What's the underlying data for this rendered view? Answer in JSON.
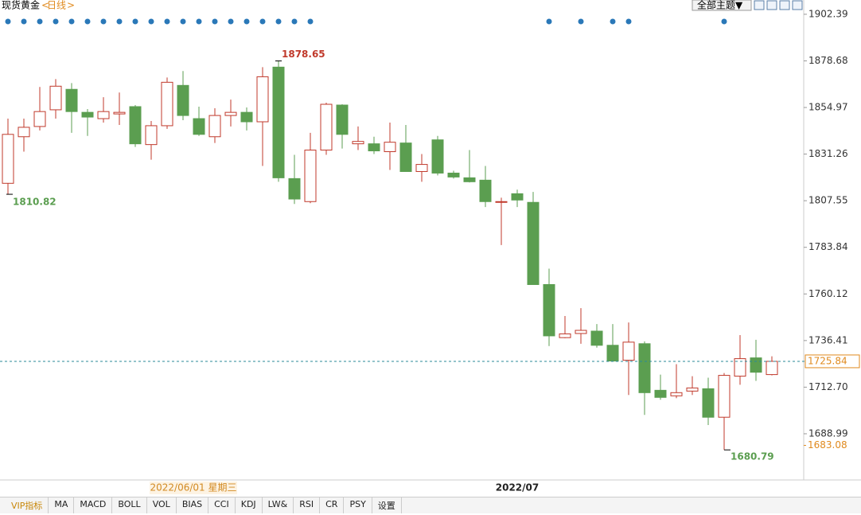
{
  "header": {
    "symbol": "现货黄金",
    "period": "日线",
    "theme_button": "全部主题▼"
  },
  "chart_data": {
    "type": "candlestick",
    "categories": [
      null,
      null,
      null,
      null,
      null,
      null,
      null,
      null,
      null,
      null,
      null,
      null,
      null,
      null,
      null,
      null,
      null,
      null,
      null,
      null,
      null,
      null,
      null,
      null,
      null,
      null,
      null,
      null,
      null,
      null,
      null,
      null,
      "2022/07",
      null,
      null,
      null,
      null,
      null,
      null,
      null,
      null,
      null,
      null,
      null,
      null,
      null,
      null,
      null,
      null
    ],
    "crosshair_date": "2022/06/01 星期三",
    "series": {
      "open": [
        1816.4,
        1840.1,
        1845.3,
        1853.8,
        1864.2,
        1852.5,
        1849.3,
        1851.7,
        1855.4,
        1836.1,
        1845.7,
        1866.2,
        1849.3,
        1840.1,
        1850.9,
        1852.5,
        1847.7,
        1875.5,
        1818.8,
        1807.1,
        1833.3,
        1856.2,
        1836.5,
        1836.5,
        1832.5,
        1836.9,
        1822.4,
        1838.5,
        1821.6,
        1819.2,
        1818.0,
        1806.7,
        1811.1,
        1806.7,
        1764.9,
        1737.9,
        1740.0,
        1741.2,
        1734.0,
        1726.4,
        1734.8,
        1711.1,
        1708.3,
        1710.7,
        1711.9,
        1697.4,
        1718.3,
        1727.6,
        1719.1
      ],
      "high": [
        1849.3,
        1849.3,
        1865.4,
        1869.4,
        1867.4,
        1854.2,
        1860.2,
        1862.6,
        1856.2,
        1848.1,
        1870.2,
        1873.5,
        1855.4,
        1854.6,
        1859.0,
        1855.0,
        1875.5,
        1878.65,
        1830.9,
        1842.1,
        1857.4,
        1856.6,
        1845.3,
        1840.1,
        1847.3,
        1846.1,
        1831.3,
        1840.5,
        1822.8,
        1833.3,
        1825.2,
        1809.1,
        1813.2,
        1812.0,
        1773.0,
        1748.9,
        1752.9,
        1744.8,
        1744.8,
        1745.6,
        1736.0,
        1719.1,
        1724.4,
        1718.3,
        1717.5,
        1719.9,
        1739.2,
        1736.8,
        1728.4
      ],
      "low": [
        1810.82,
        1832.5,
        1843.3,
        1849.3,
        1842.1,
        1840.5,
        1847.3,
        1846.1,
        1834.9,
        1828.4,
        1844.1,
        1848.5,
        1840.5,
        1836.9,
        1845.3,
        1843.3,
        1825.2,
        1817.2,
        1805.9,
        1806.3,
        1830.9,
        1834.1,
        1833.3,
        1831.3,
        1823.2,
        1822.4,
        1817.2,
        1820.4,
        1818.8,
        1816.8,
        1804.3,
        1785.0,
        1804.3,
        1764.9,
        1733.6,
        1737.6,
        1734.8,
        1732.8,
        1725.6,
        1708.7,
        1698.6,
        1706.3,
        1707.1,
        1708.7,
        1693.4,
        1680.79,
        1713.9,
        1715.9,
        1718.7
      ],
      "close": [
        1841.3,
        1844.9,
        1852.9,
        1865.8,
        1852.9,
        1850.1,
        1852.9,
        1852.5,
        1836.5,
        1845.7,
        1867.8,
        1850.9,
        1841.3,
        1850.9,
        1852.5,
        1847.7,
        1870.6,
        1819.2,
        1808.4,
        1833.3,
        1856.6,
        1841.3,
        1837.7,
        1832.9,
        1837.3,
        1822.4,
        1826.0,
        1821.6,
        1819.6,
        1817.2,
        1807.1,
        1807.1,
        1807.9,
        1764.9,
        1738.8,
        1739.8,
        1741.6,
        1734.0,
        1726.0,
        1735.6,
        1709.9,
        1707.5,
        1709.9,
        1712.3,
        1697.4,
        1718.7,
        1727.2,
        1720.3,
        1725.84
      ]
    },
    "up_color": "#c0392b",
    "down_color": "#5b9e50",
    "ylim": [
      1666.7,
      1905.6
    ],
    "yticks": [
      1902.39,
      1878.68,
      1854.97,
      1831.26,
      1807.55,
      1783.84,
      1760.12,
      1736.41,
      {
        "value": 1712.7,
        "label": "1712.70"
      },
      1688.99
    ],
    "annotations": {
      "high": "1878.65",
      "first_low": "1810.82",
      "low": "1680.79"
    },
    "last_price": 1725.84,
    "bottom_price": 1683.08
  },
  "tabs": [
    "VIP指标",
    "MA",
    "MACD",
    "BOLL",
    "VOL",
    "BIAS",
    "CCI",
    "KDJ",
    "LW&",
    "RSI",
    "CR",
    "PSY",
    "设置"
  ]
}
